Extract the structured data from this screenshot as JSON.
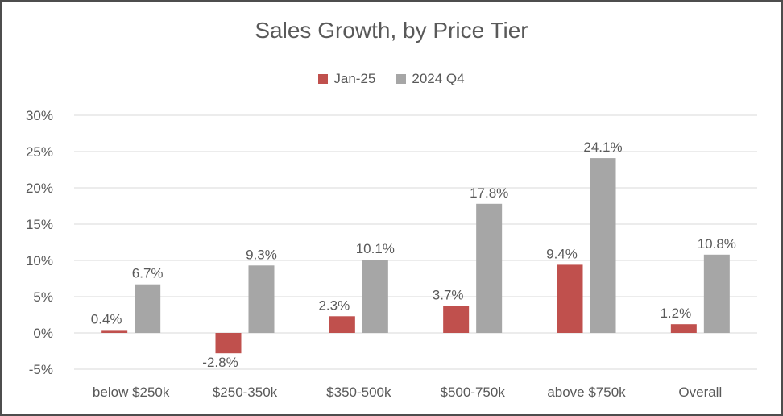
{
  "chart_data": {
    "type": "bar",
    "title": "Sales Growth, by Price Tier",
    "categories": [
      "below $250k",
      "$250-350k",
      "$350-500k",
      "$500-750k",
      "above $750k",
      "Overall"
    ],
    "series": [
      {
        "name": "Jan-25",
        "color": "#c0504d",
        "values": [
          0.4,
          -2.8,
          2.3,
          3.7,
          9.4,
          1.2
        ],
        "labels": [
          "0.4%",
          "-2.8%",
          "2.3%",
          "3.7%",
          "9.4%",
          "1.2%"
        ]
      },
      {
        "name": "2024 Q4",
        "color": "#a6a6a6",
        "values": [
          6.7,
          9.3,
          10.1,
          17.8,
          24.1,
          10.8
        ],
        "labels": [
          "6.7%",
          "9.3%",
          "10.1%",
          "17.8%",
          "24.1%",
          "10.8%"
        ]
      }
    ],
    "yticks": [
      30,
      25,
      20,
      15,
      10,
      5,
      0,
      -5
    ],
    "ytick_labels": [
      "30%",
      "25%",
      "20%",
      "15%",
      "10%",
      "5%",
      "0%",
      "-5%"
    ],
    "ylim": [
      -5,
      30
    ],
    "grid": true,
    "legend_position": "top-center",
    "xlabel": "",
    "ylabel": ""
  }
}
